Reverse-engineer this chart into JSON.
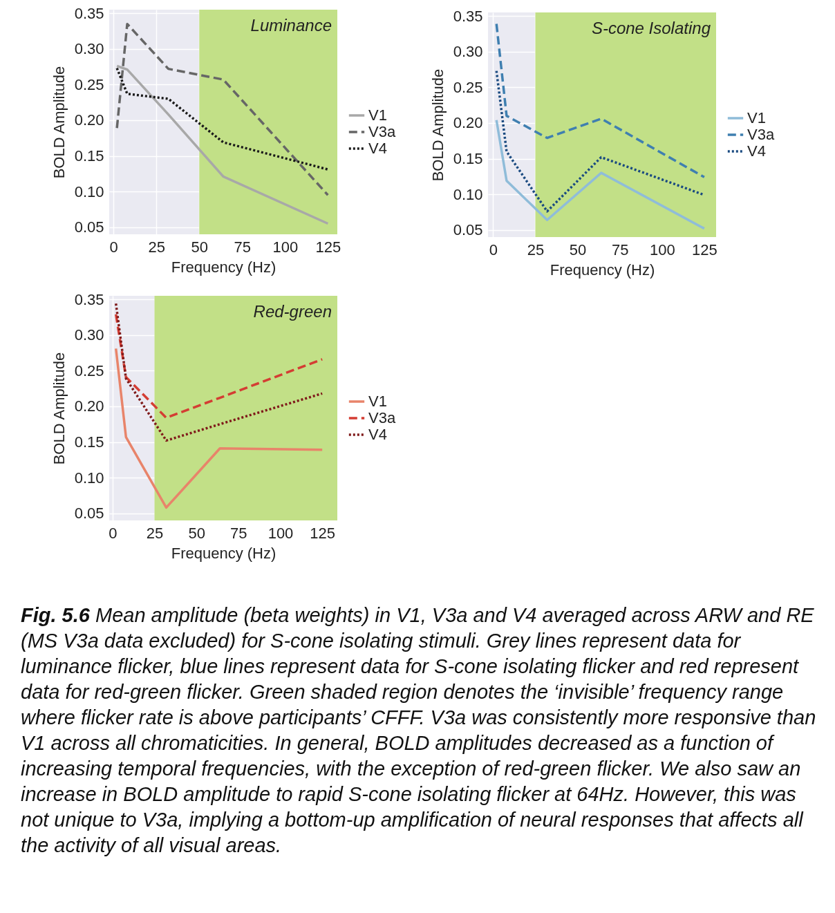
{
  "chart_data": [
    {
      "type": "line",
      "title": "Luminance",
      "xlabel": "Frequency (Hz)",
      "ylabel": "BOLD Amplitude",
      "x": [
        2,
        8,
        32,
        64,
        125
      ],
      "series": [
        {
          "name": "V1",
          "color": "#a8a8a8",
          "line_style": "solid",
          "values": [
            0.276,
            0.271,
            0.208,
            0.121,
            0.055
          ]
        },
        {
          "name": "V3a",
          "color": "#666666",
          "line_style": "dashed",
          "values": [
            0.189,
            0.335,
            0.272,
            0.257,
            0.095
          ]
        },
        {
          "name": "V4",
          "color": "#1a1a1a",
          "line_style": "dotted",
          "values": [
            0.273,
            0.237,
            0.23,
            0.169,
            0.131
          ]
        }
      ],
      "xlim": [
        -2.5,
        130.5
      ],
      "xticks": [
        0,
        25,
        50,
        75,
        100,
        125
      ],
      "ylim": [
        0.04,
        0.355
      ],
      "yticks": [
        0.05,
        {
          "value": 0.1,
          "label": "0.10"
        },
        0.15,
        {
          "value": 0.2,
          "label": "0.20"
        },
        0.25,
        {
          "value": 0.3,
          "label": "0.30"
        },
        0.35
      ],
      "grid": true,
      "legend": "right",
      "bands": [
        {
          "axis": "x",
          "from": 50,
          "to": 130.5,
          "color": "#c2e087"
        }
      ]
    },
    {
      "type": "line",
      "title": "S-cone Isolating",
      "xlabel": "Frequency (Hz)",
      "ylabel": "BOLD Amplitude",
      "x": [
        2,
        8,
        32,
        64,
        125
      ],
      "series": [
        {
          "name": "V1",
          "color": "#8fbcd9",
          "line_style": "solid",
          "values": [
            0.204,
            0.119,
            0.064,
            0.13,
            0.052
          ]
        },
        {
          "name": "V3a",
          "color": "#3f7fb0",
          "line_style": "dashed",
          "values": [
            0.339,
            0.21,
            0.179,
            0.206,
            0.124
          ]
        },
        {
          "name": "V4",
          "color": "#1a4a80",
          "line_style": "dotted",
          "values": [
            0.273,
            0.16,
            0.076,
            0.152,
            0.099
          ]
        }
      ],
      "xlim": [
        -3,
        132
      ],
      "xticks": [
        0,
        25,
        50,
        75,
        100,
        125
      ],
      "ylim": [
        0.04,
        0.355
      ],
      "yticks": [
        0.05,
        {
          "value": 0.1,
          "label": "0.10"
        },
        0.15,
        {
          "value": 0.2,
          "label": "0.20"
        },
        0.25,
        {
          "value": 0.3,
          "label": "0.30"
        },
        0.35
      ],
      "grid": true,
      "legend": "right",
      "bands": [
        {
          "axis": "x",
          "from": 25,
          "to": 132,
          "color": "#c2e087"
        }
      ]
    },
    {
      "type": "line",
      "title": "Red-green",
      "xlabel": "Frequency (Hz)",
      "ylabel": "BOLD Amplitude",
      "x": [
        2,
        8,
        32,
        64,
        125
      ],
      "series": [
        {
          "name": "V1",
          "color": "#e8846a",
          "line_style": "solid",
          "values": [
            0.281,
            0.157,
            0.058,
            0.141,
            0.139
          ]
        },
        {
          "name": "V3a",
          "color": "#d43d33",
          "line_style": "dashed",
          "values": [
            0.329,
            0.241,
            0.184,
            0.212,
            0.266
          ]
        },
        {
          "name": "V4",
          "color": "#7f1a1a",
          "line_style": "dotted",
          "values": [
            0.344,
            0.239,
            0.152,
            0.175,
            0.218
          ]
        }
      ],
      "xlim": [
        -2,
        134
      ],
      "xticks": [
        0,
        25,
        50,
        75,
        100,
        125
      ],
      "ylim": [
        0.04,
        0.355
      ],
      "yticks": [
        0.05,
        {
          "value": 0.1,
          "label": "0.10"
        },
        0.15,
        {
          "value": 0.2,
          "label": "0.20"
        },
        0.25,
        {
          "value": 0.3,
          "label": "0.30"
        },
        0.35
      ],
      "grid": true,
      "legend": "right",
      "bands": [
        {
          "axis": "x",
          "from": 25,
          "to": 134,
          "color": "#c2e087"
        }
      ],
      "annotations": [
        "Fig. 5.6 Mean amplitude (beta weights) in V1, V3a and V4 averaged across ARW and RE (MS V3a data excluded) for S-cone isolating stimuli. Grey lines represent data for luminance flicker, blue lines represent data for S-cone isolating flicker and red represent data for red-green flicker. Green shaded region denotes the ‘invisible’ frequency range where flicker rate is above participants’ CFFF. V3a was consistently more responsive than V1 across all chromaticities. In general, BOLD amplitudes decreased as a function of increasing temporal frequencies, with the exception of red-green flicker. We also saw an increase in BOLD amplitude to rapid S-cone isolating flicker at 64Hz. However, this was not unique to V3a, implying a bottom-up amplification of neural responses that affects all the activity of all visual areas."
      ]
    }
  ]
}
